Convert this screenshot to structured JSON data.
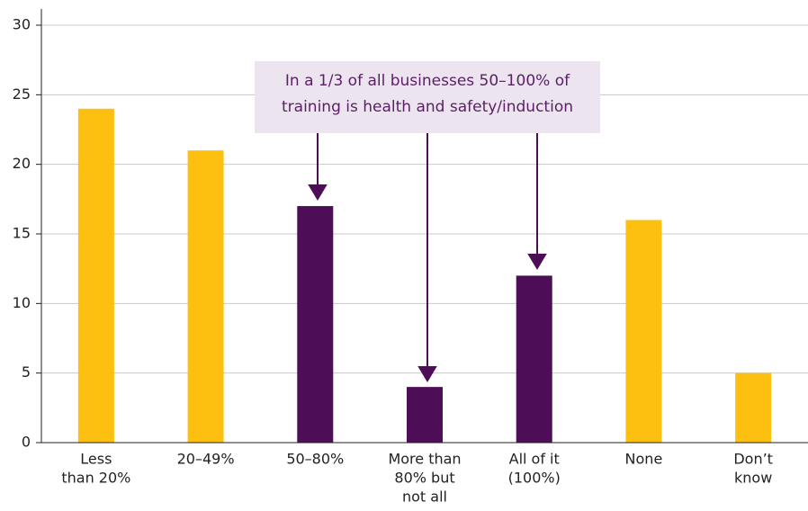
{
  "chart_data": {
    "type": "bar",
    "categories": [
      [
        "Less",
        "than 20%"
      ],
      [
        "20–49%"
      ],
      [
        "50–80%"
      ],
      [
        "More than",
        "80% but",
        "not all"
      ],
      [
        "All of it",
        "(100%)"
      ],
      [
        "None"
      ],
      [
        "Don’t",
        "know"
      ]
    ],
    "values": [
      24,
      21,
      17,
      4,
      12,
      16,
      5
    ],
    "colors": [
      "#fdc010",
      "#fdc010",
      "#4e0d57",
      "#4e0d57",
      "#4e0d57",
      "#fdc010",
      "#fdc010"
    ],
    "ylim": [
      0,
      30
    ],
    "yticks": [
      0,
      5,
      10,
      15,
      20,
      25,
      30
    ],
    "grid": true,
    "annotation": [
      "In a 1/3 of all businesses 50–100% of",
      "training is health and safety/induction"
    ]
  }
}
